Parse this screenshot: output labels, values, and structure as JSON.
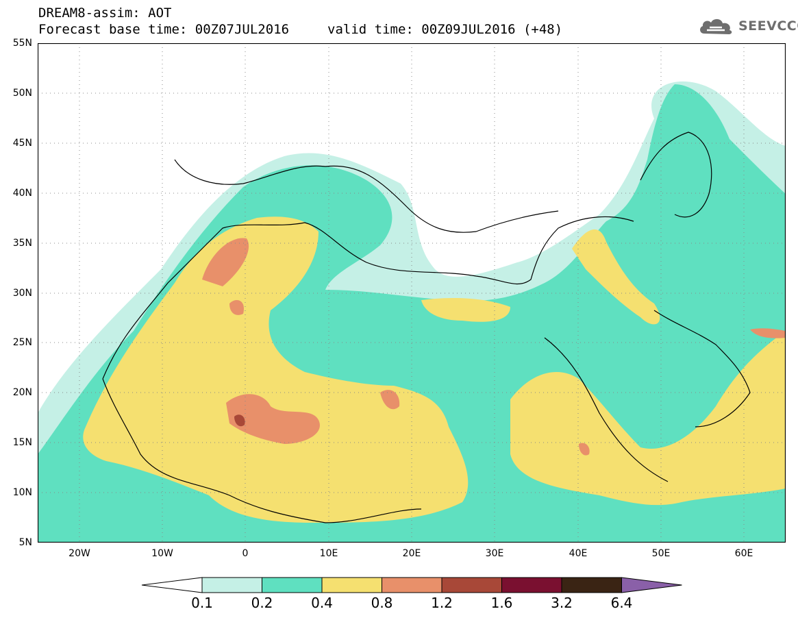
{
  "header": {
    "title": "DREAM8-assim: AOT",
    "base_time": "Forecast base time: 00Z07JUL2016",
    "valid_time": "valid time: 00Z09JUL2016 (+48)"
  },
  "logo": {
    "text": "SEEVCCC",
    "icon": "cloud-icon"
  },
  "map": {
    "lon_range": [
      -25,
      65
    ],
    "lat_range": [
      5,
      55
    ],
    "lat_labels": [
      "55N",
      "50N",
      "45N",
      "40N",
      "35N",
      "30N",
      "25N",
      "20N",
      "15N",
      "10N",
      "5N"
    ],
    "lon_labels": [
      "20W",
      "10W",
      "0",
      "10E",
      "20E",
      "30E",
      "40E",
      "50E",
      "60E"
    ],
    "grid": "dotted every 5 degrees"
  },
  "colorbar": {
    "labels": [
      "0.1",
      "0.2",
      "0.4",
      "0.8",
      "1.2",
      "1.6",
      "3.2",
      "6.4"
    ],
    "colors": [
      "#ffffff",
      "#c5f0e6",
      "#5fe0c0",
      "#f5e070",
      "#e8906a",
      "#a84838",
      "#7a1030",
      "#3a2414",
      "#8a60a8"
    ]
  }
}
